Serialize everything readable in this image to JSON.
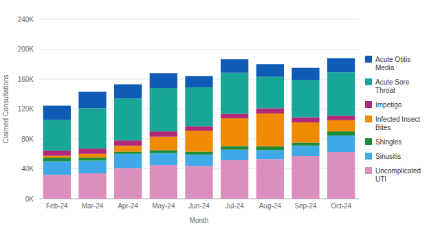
{
  "chart_data": {
    "type": "bar",
    "stacked": true,
    "grid": true,
    "legend": "right",
    "x_label": "Month",
    "y_label": "Claimed Consultations",
    "categories": [
      "Feb-24",
      "Mar-24",
      "Apr-24",
      "May-24",
      "Jun-24",
      "Jul-24",
      "Aug-24",
      "Sep-24",
      "Oct-24"
    ],
    "ylim": [
      0,
      240000
    ],
    "yticks": [
      {
        "value": 0,
        "label": "0K"
      },
      {
        "value": 40000,
        "label": "40K"
      },
      {
        "value": 80000,
        "label": "80K"
      },
      {
        "value": 120000,
        "label": "120K"
      },
      {
        "value": 160000,
        "label": "160K"
      },
      {
        "value": 200000,
        "label": "200K"
      },
      {
        "value": 240000,
        "label": "240K"
      }
    ],
    "series": [
      {
        "name": "Uncomplicated UTI",
        "color": "#db8fbd",
        "values": [
          32000,
          34000,
          41000,
          45000,
          44000,
          51500,
          53000,
          57000,
          62500
        ]
      },
      {
        "name": "Sinusitis",
        "color": "#3fa9e8",
        "values": [
          18000,
          17000,
          19000,
          16000,
          15000,
          14000,
          12000,
          14000,
          22000
        ]
      },
      {
        "name": "Shingles",
        "color": "#1e8c3a",
        "values": [
          5000,
          4000,
          3000,
          4000,
          4000,
          5000,
          5000,
          4000,
          5500
        ]
      },
      {
        "name": "Infected Insect Bites",
        "color": "#f08a00",
        "values": [
          2500,
          5000,
          8000,
          18000,
          28000,
          37000,
          44000,
          27000,
          15000
        ]
      },
      {
        "name": "Impetigo",
        "color": "#b0287a",
        "values": [
          7000,
          7000,
          7000,
          7000,
          6000,
          6000,
          7000,
          7000,
          6000
        ]
      },
      {
        "name": "Acute Sore Throat",
        "color": "#17a697",
        "values": [
          41000,
          54000,
          56000,
          58000,
          52000,
          55000,
          42000,
          50000,
          58000
        ]
      },
      {
        "name": "Acute Otitis Media",
        "color": "#0f5bb5",
        "values": [
          19000,
          22000,
          19000,
          20000,
          15000,
          18000,
          17000,
          16000,
          19000
        ]
      }
    ]
  }
}
